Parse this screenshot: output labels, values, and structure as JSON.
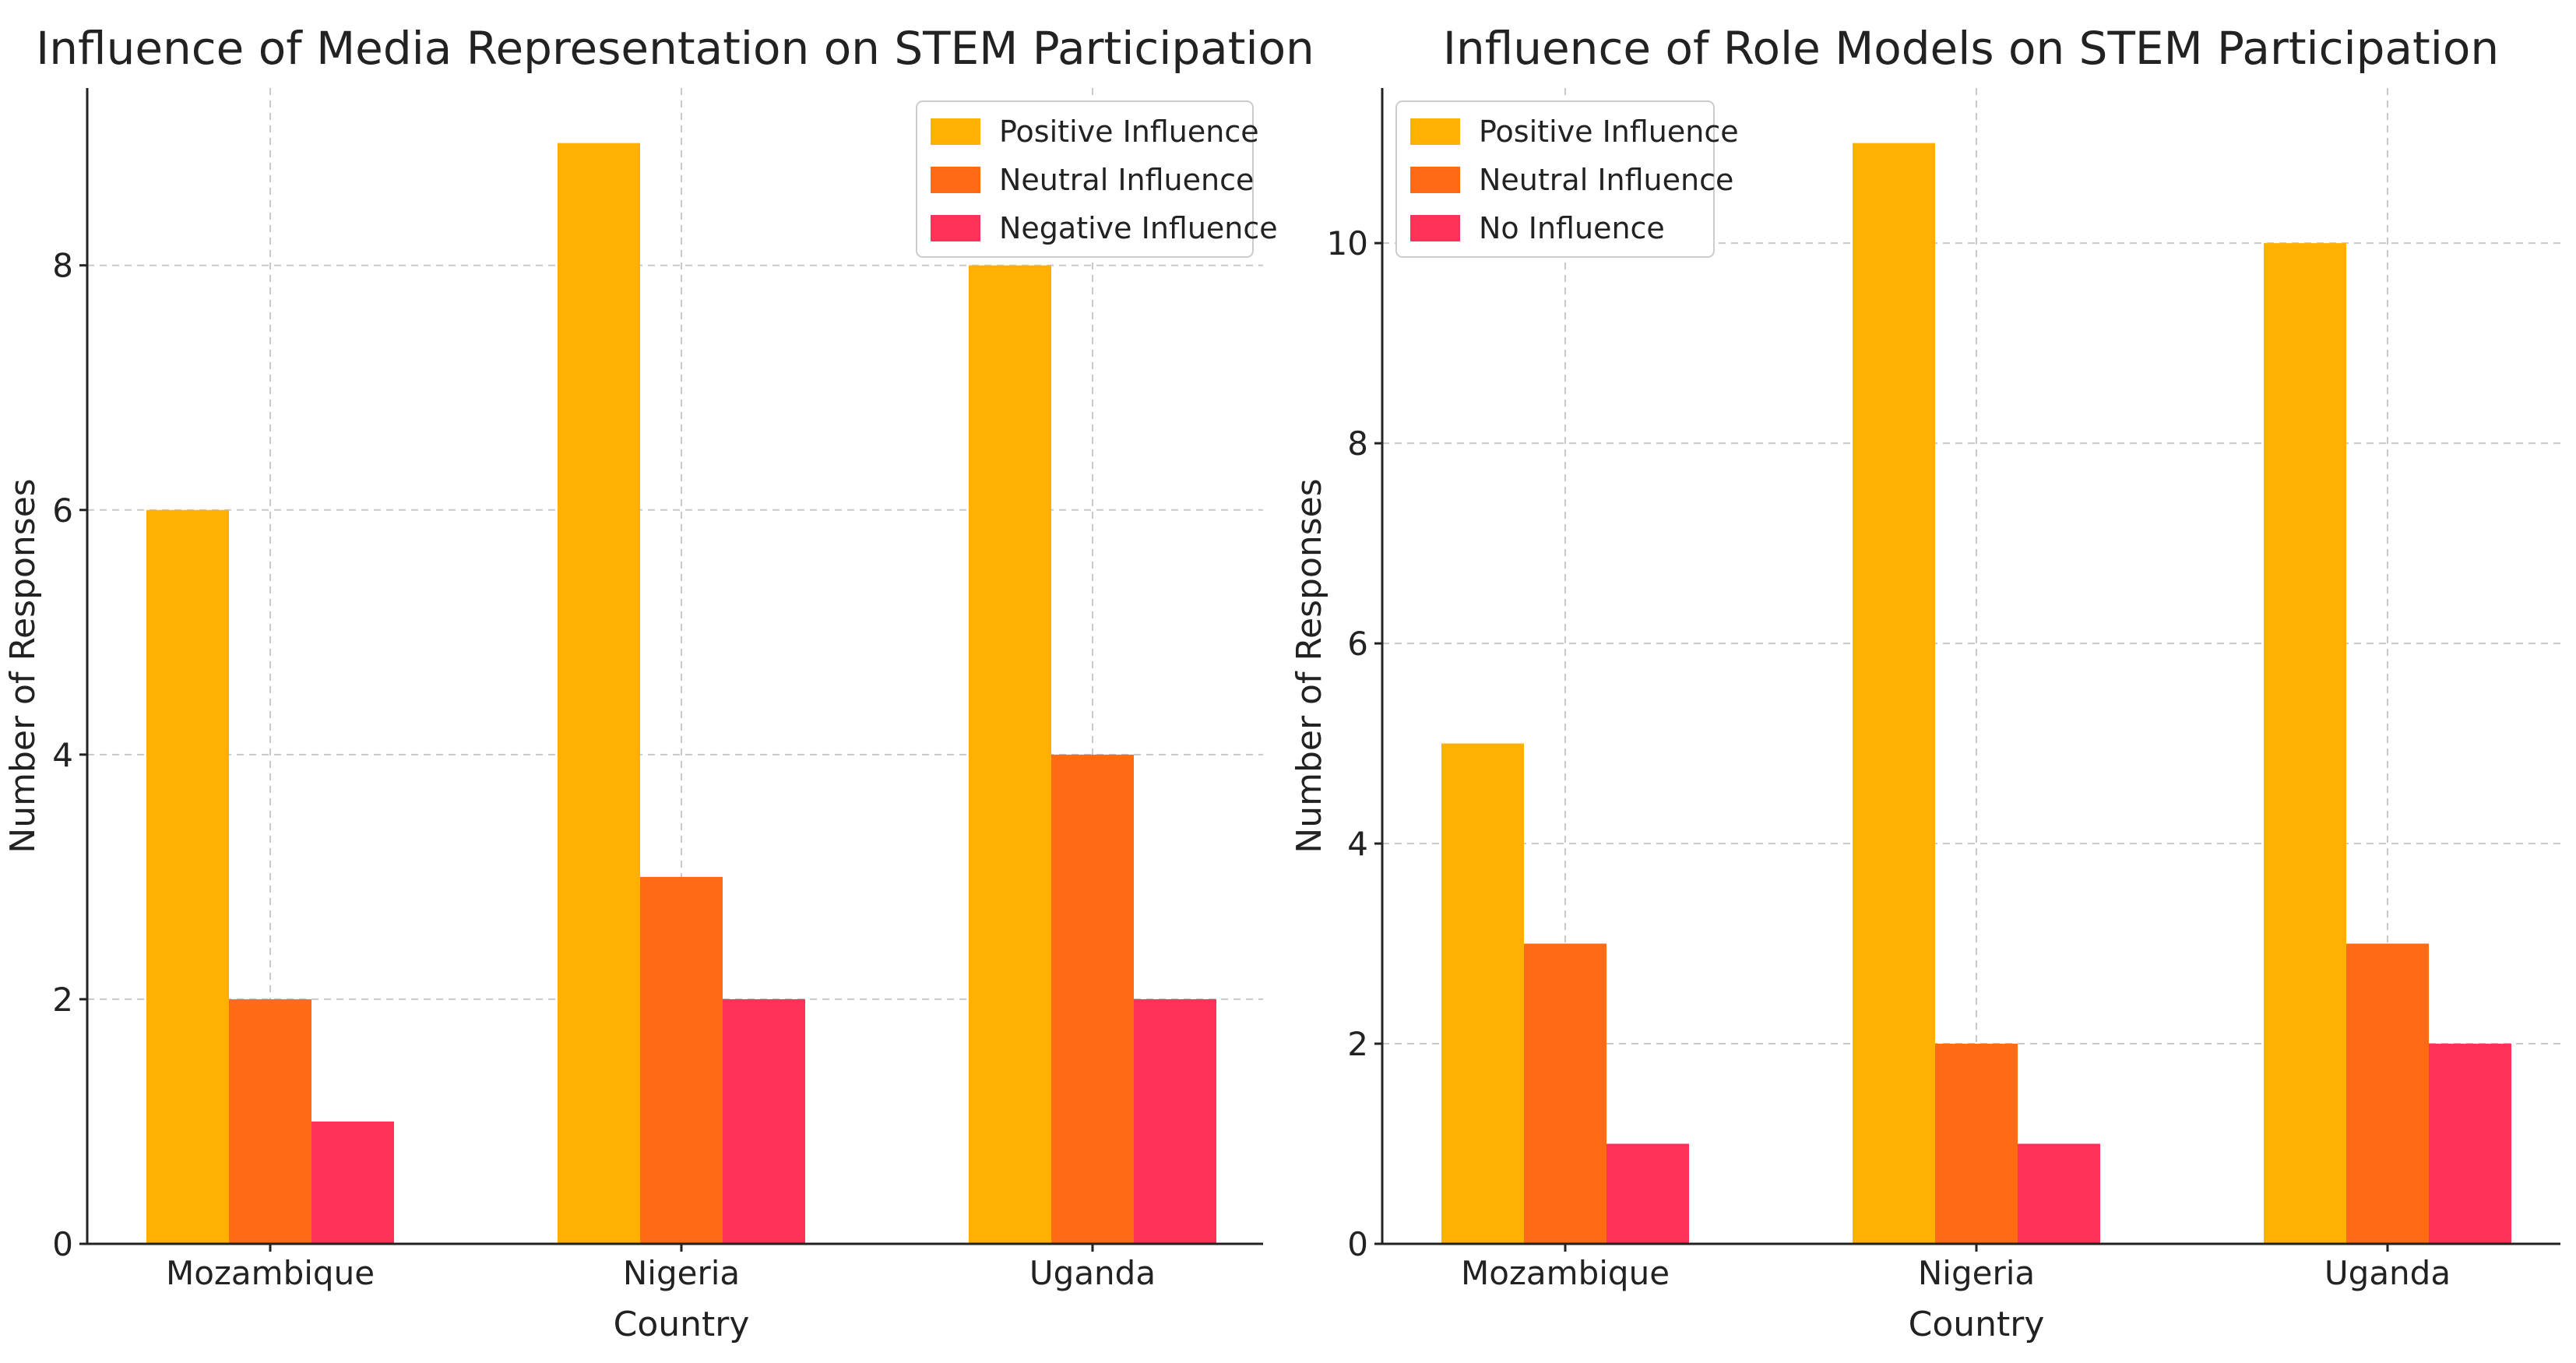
{
  "chart_data": [
    {
      "type": "bar",
      "title": "Influence of Media Representation on STEM Participation",
      "xlabel": "Country",
      "ylabel": "Number of Responses",
      "categories": [
        "Mozambique",
        "Nigeria",
        "Uganda"
      ],
      "series": [
        {
          "name": "Positive Influence",
          "color": "#FFB000",
          "values": [
            6,
            9,
            8
          ]
        },
        {
          "name": "Neutral Influence",
          "color": "#FE6B14",
          "values": [
            2,
            3,
            4
          ]
        },
        {
          "name": "Negative Influence",
          "color": "#FF3158",
          "values": [
            1,
            2,
            2
          ]
        }
      ],
      "ylim": [
        0,
        9.45
      ],
      "yticks": [
        0,
        2,
        4,
        6,
        8
      ],
      "grid": true,
      "legend_position": "top-right"
    },
    {
      "type": "bar",
      "title": "Influence of Role Models on STEM Participation",
      "xlabel": "Country",
      "ylabel": "Number of Responses",
      "categories": [
        "Mozambique",
        "Nigeria",
        "Uganda"
      ],
      "series": [
        {
          "name": "Positive Influence",
          "color": "#FFB000",
          "values": [
            5,
            11,
            10
          ]
        },
        {
          "name": "Neutral Influence",
          "color": "#FE6B14",
          "values": [
            3,
            2,
            3
          ]
        },
        {
          "name": "No Influence",
          "color": "#FF3158",
          "values": [
            1,
            1,
            2
          ]
        }
      ],
      "ylim": [
        0,
        11.55
      ],
      "yticks": [
        0,
        2,
        4,
        6,
        8,
        10
      ],
      "grid": true,
      "legend_position": "top-left"
    }
  ]
}
